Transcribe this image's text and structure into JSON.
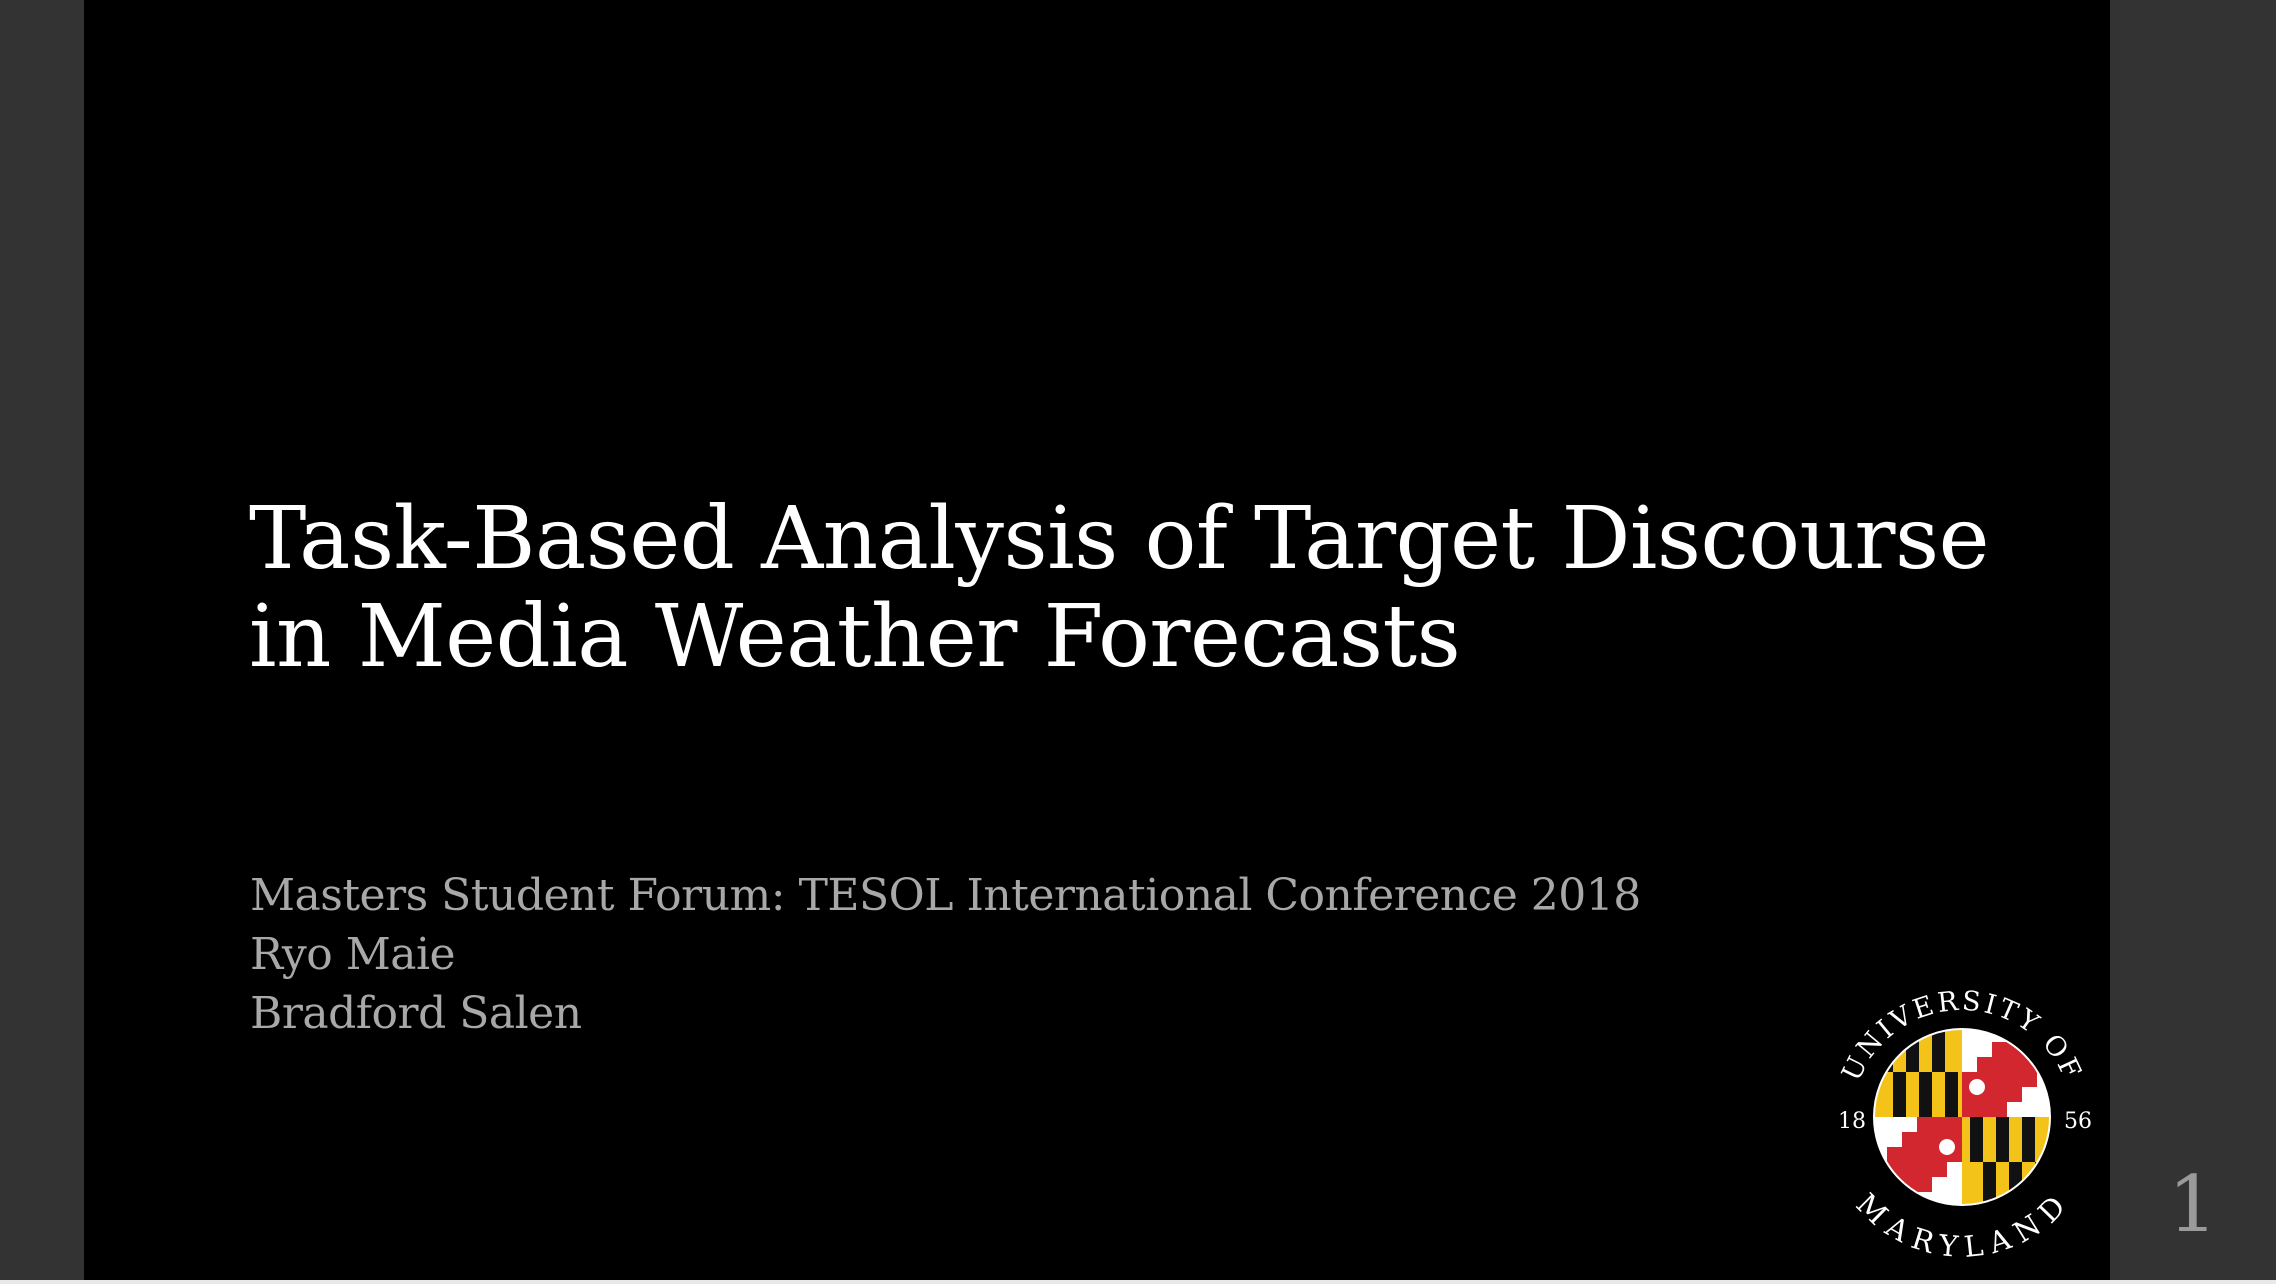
{
  "slide": {
    "title_line1": "Task-Based Analysis of Target Discourse",
    "title_line2": "in Media Weather Forecasts",
    "subtitle_line1": "Masters Student Forum: TESOL International Conference 2018",
    "subtitle_line2": "Ryo Maie",
    "subtitle_line3": "Bradford Salen",
    "page_number": "1"
  },
  "seal": {
    "icon": "university-of-maryland-seal-icon",
    "text_top": "UNIVERSITY OF",
    "text_bottom": "MARYLAND",
    "year_left": "18",
    "year_right": "56"
  },
  "colors": {
    "background_frame": "#333333",
    "slide_background": "#000000",
    "title": "#ffffff",
    "subtitle": "#a8a8a8",
    "flag_black": "#111111",
    "flag_gold": "#f4c31a",
    "flag_red": "#d2272e",
    "flag_white": "#ffffff"
  }
}
